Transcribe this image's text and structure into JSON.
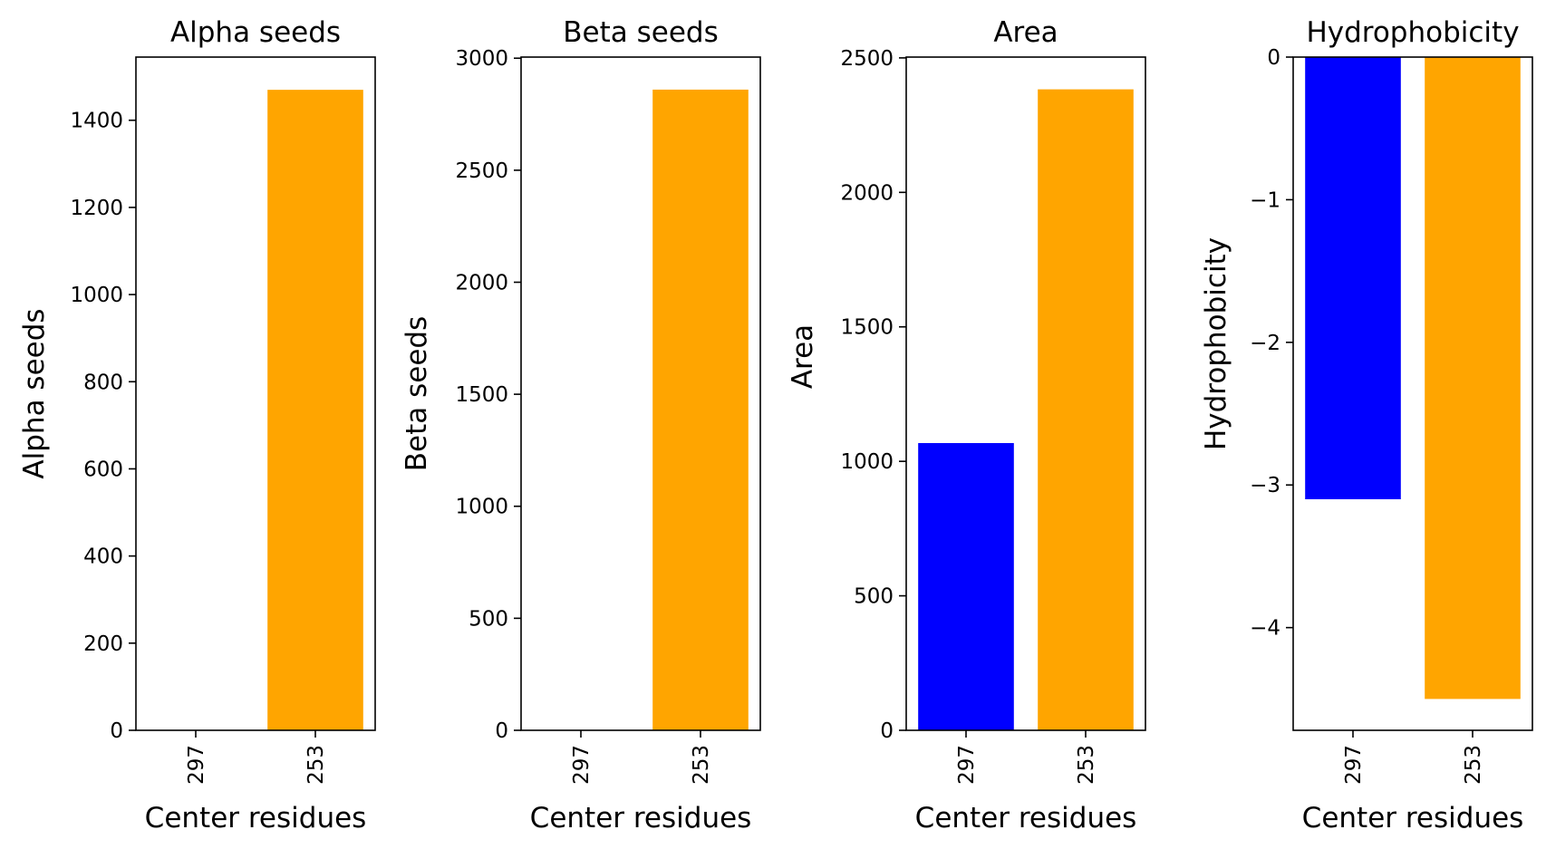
{
  "colors": {
    "series_297": "#0000ff",
    "series_253": "#ffa500",
    "axes": "#000000",
    "background": "#ffffff"
  },
  "chart_data": [
    {
      "type": "bar",
      "title": "Alpha seeds",
      "xlabel": "Center residues",
      "ylabel": "Alpha seeds",
      "categories": [
        "297",
        "253"
      ],
      "values": [
        0,
        1470
      ],
      "colors": [
        "#0000ff",
        "#ffa500"
      ],
      "ylim": [
        0,
        1545
      ],
      "yticks": [
        0,
        200,
        400,
        600,
        800,
        1000,
        1200,
        1400
      ],
      "ytick_labels": [
        "0",
        "200",
        "400",
        "600",
        "800",
        "1000",
        "1200",
        "1400"
      ],
      "grid": false,
      "legend": "none"
    },
    {
      "type": "bar",
      "title": "Beta seeds",
      "xlabel": "Center residues",
      "ylabel": "Beta seeds",
      "categories": [
        "297",
        "253"
      ],
      "values": [
        0,
        2860
      ],
      "colors": [
        "#0000ff",
        "#ffa500"
      ],
      "ylim": [
        0,
        3005
      ],
      "yticks": [
        0,
        500,
        1000,
        1500,
        2000,
        2500,
        3000
      ],
      "ytick_labels": [
        "0",
        "500",
        "1000",
        "1500",
        "2000",
        "2500",
        "3000"
      ],
      "grid": false,
      "legend": "none"
    },
    {
      "type": "bar",
      "title": "Area",
      "xlabel": "Center residues",
      "ylabel": "Area",
      "categories": [
        "297",
        "253"
      ],
      "values": [
        1068,
        2383
      ],
      "colors": [
        "#0000ff",
        "#ffa500"
      ],
      "ylim": [
        0,
        2503
      ],
      "yticks": [
        0,
        500,
        1000,
        1500,
        2000,
        2500
      ],
      "ytick_labels": [
        "0",
        "500",
        "1000",
        "1500",
        "2000",
        "2500"
      ],
      "grid": false,
      "legend": "none"
    },
    {
      "type": "bar",
      "title": "Hydrophobicity",
      "xlabel": "Center residues",
      "ylabel": "Hydrophobicity",
      "categories": [
        "297",
        "253"
      ],
      "values": [
        -3.1,
        -4.5
      ],
      "colors": [
        "#0000ff",
        "#ffa500"
      ],
      "ylim": [
        -4.72,
        0
      ],
      "yticks": [
        0,
        -1,
        -2,
        -3,
        -4
      ],
      "ytick_labels": [
        "0",
        "−1",
        "−2",
        "−3",
        "−4"
      ],
      "grid": false,
      "legend": "none"
    }
  ]
}
